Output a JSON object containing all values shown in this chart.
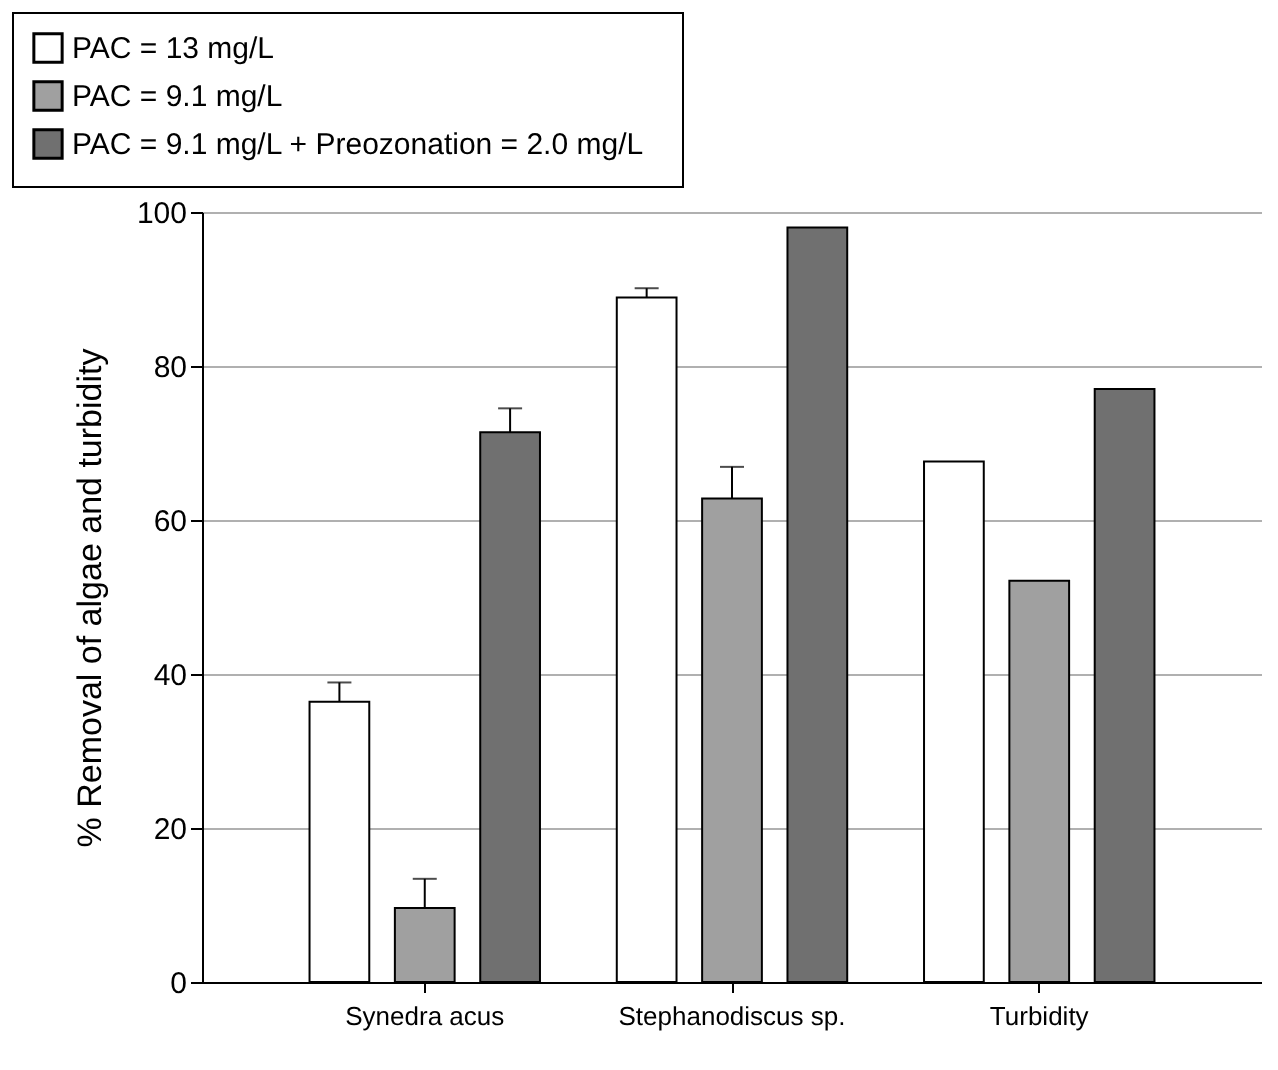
{
  "chart_data": {
    "type": "bar",
    "ylabel": "% Removal of algae and turbidity",
    "categories": [
      "Synedra acus",
      "Stephanodiscus sp.",
      "Turbidity"
    ],
    "series": [
      {
        "name": "PAC = 13 mg/L",
        "color": "#ffffff",
        "values": [
          36.4,
          88.9,
          67.6
        ],
        "errors": [
          [
            36.4,
            38.9
          ],
          [
            88.9,
            90.1
          ],
          null
        ]
      },
      {
        "name": "PAC = 9.1 mg/L",
        "color": "#a0a0a0",
        "values": [
          9.6,
          62.8,
          52.1
        ],
        "errors": [
          [
            9.6,
            13.4
          ],
          [
            62.8,
            66.9
          ],
          null
        ]
      },
      {
        "name": "PAC = 9.1 mg/L  +  Preozonation = 2.0 mg/L",
        "color": "#707070",
        "values": [
          71.4,
          98.0,
          77.0
        ],
        "errors": [
          [
            71.4,
            74.5
          ],
          null,
          null
        ]
      }
    ],
    "ylim": [
      0,
      100
    ],
    "yticks": [
      0,
      20,
      40,
      60,
      80,
      100
    ],
    "grid": "y",
    "legend": "top left"
  }
}
